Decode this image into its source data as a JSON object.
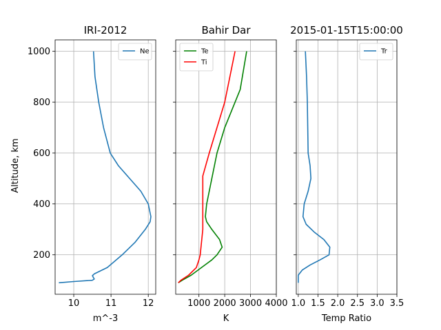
{
  "chart_data": [
    {
      "type": "line",
      "title": "IRI-2012",
      "xlabel": "m^-3",
      "ylabel": "Altitude, km",
      "xlim": [
        9.5,
        12.2
      ],
      "ylim": [
        45,
        1045
      ],
      "xticks": [
        10,
        11,
        12
      ],
      "yticks": [
        200,
        400,
        600,
        800,
        1000
      ],
      "grid": true,
      "legend_position": "top-right",
      "series": [
        {
          "name": "Ne",
          "color": "#1f77b4",
          "x": [
            9.6,
            10.0,
            10.5,
            10.55,
            10.5,
            10.55,
            10.9,
            11.3,
            11.65,
            11.92,
            12.05,
            12.07,
            12.0,
            11.8,
            11.5,
            11.2,
            10.98,
            10.8,
            10.67,
            10.57,
            10.53
          ],
          "y": [
            90,
            95,
            100,
            105,
            118,
            125,
            150,
            200,
            250,
            300,
            330,
            350,
            400,
            450,
            500,
            550,
            600,
            700,
            800,
            900,
            1000
          ]
        }
      ]
    },
    {
      "type": "line",
      "title": "Bahir Dar",
      "xlabel": "K",
      "ylabel": "",
      "xlim": [
        100,
        4000
      ],
      "ylim": [
        45,
        1045
      ],
      "xticks": [
        1000,
        2000,
        3000,
        4000
      ],
      "yticks": [
        200,
        400,
        600,
        800,
        1000
      ],
      "grid": true,
      "legend_position": "top-left",
      "series": [
        {
          "name": "Te",
          "color": "#008000",
          "x": [
            200,
            350,
            700,
            1100,
            1500,
            1700,
            1900,
            1800,
            1500,
            1300,
            1250,
            1300,
            1500,
            1700,
            2000,
            2400,
            2600,
            2850
          ],
          "y": [
            90,
            100,
            120,
            150,
            180,
            200,
            230,
            260,
            300,
            330,
            350,
            400,
            500,
            600,
            700,
            800,
            850,
            1000
          ]
        },
        {
          "name": "Ti",
          "color": "#ff0000",
          "x": [
            200,
            300,
            600,
            900,
            1000,
            1050,
            1100,
            1150,
            1150,
            1150,
            1400,
            1700,
            2000,
            2400
          ],
          "y": [
            90,
            100,
            120,
            150,
            180,
            200,
            250,
            300,
            400,
            510,
            600,
            700,
            800,
            1000
          ]
        }
      ]
    },
    {
      "type": "line",
      "title": "2015-01-15T15:00:00",
      "xlabel": "Temp Ratio",
      "ylabel": "",
      "xlim": [
        0.95,
        3.5
      ],
      "ylim": [
        45,
        1045
      ],
      "xticks": [
        1.0,
        1.5,
        2.0,
        2.5,
        3.0,
        3.5
      ],
      "xtick_labels": [
        "1.0",
        "1.5",
        "2.0",
        "2.5",
        "3.0",
        "3.5"
      ],
      "yticks": [
        200,
        400,
        600,
        800,
        1000
      ],
      "grid": true,
      "legend_position": "top-right",
      "series": [
        {
          "name": "Tr",
          "color": "#1f77b4",
          "x": [
            1.0,
            1.0,
            1.1,
            1.3,
            1.55,
            1.78,
            1.8,
            1.65,
            1.4,
            1.2,
            1.12,
            1.15,
            1.25,
            1.32,
            1.3,
            1.25,
            1.24,
            1.23,
            1.21,
            1.18
          ],
          "y": [
            90,
            120,
            140,
            160,
            180,
            200,
            230,
            260,
            290,
            320,
            350,
            400,
            450,
            500,
            550,
            600,
            700,
            800,
            900,
            1000
          ]
        }
      ]
    }
  ]
}
